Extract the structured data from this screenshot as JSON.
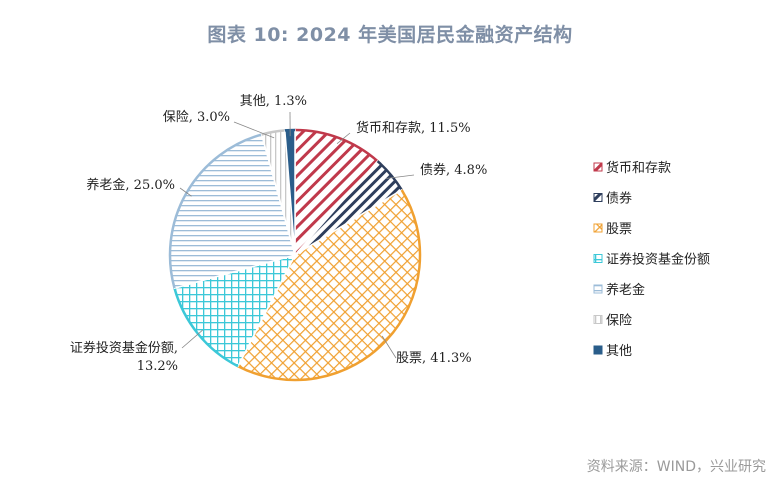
{
  "title": "图表 10: 2024 年美国居民金融资产结构",
  "source": "资料来源：WIND，兴业研究",
  "chart_data": {
    "type": "pie",
    "title": "图表 10: 2024 年美国居民金融资产结构",
    "legend_position": "right",
    "slices": [
      {
        "name": "货币和存款",
        "value": 11.5,
        "label": "货币和存款, 11.5%",
        "color": "#c0394b",
        "pattern": "diag-right"
      },
      {
        "name": "债券",
        "value": 4.8,
        "label": "债券, 4.8%",
        "color": "#2e3e5c",
        "pattern": "diag-right-dense"
      },
      {
        "name": "股票",
        "value": 41.3,
        "label": "股票, 41.3%",
        "color": "#f0a030",
        "pattern": "crosshatch"
      },
      {
        "name": "证券投资基金份额",
        "value": 13.2,
        "label": [
          "证券投资基金份额,",
          "13.2%"
        ],
        "color": "#3cc8d8",
        "pattern": "grid"
      },
      {
        "name": "养老金",
        "value": 25.0,
        "label": "养老金, 25.0%",
        "color": "#9cbcd8",
        "pattern": "horizontal"
      },
      {
        "name": "保险",
        "value": 3.0,
        "label": "保险, 3.0%",
        "color": "#c8c8c8",
        "pattern": "vertical"
      },
      {
        "name": "其他",
        "value": 1.3,
        "label": "其他, 1.3%",
        "color": "#2a5d8a",
        "pattern": "solid"
      }
    ]
  }
}
